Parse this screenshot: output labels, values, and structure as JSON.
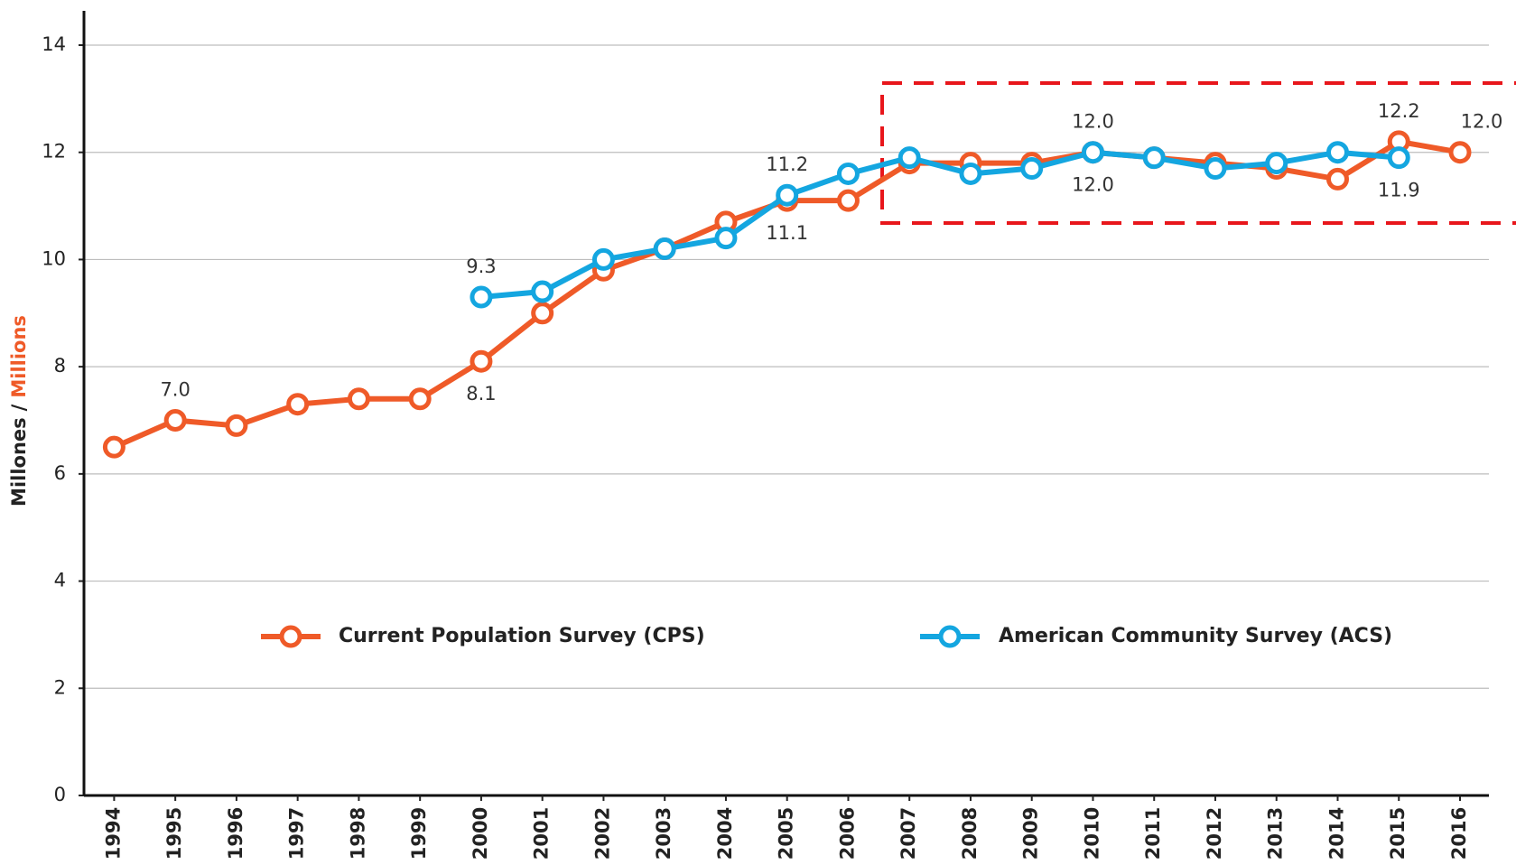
{
  "chart_data": {
    "type": "line",
    "y_label": [
      "Millones",
      "/",
      "Millions"
    ],
    "x": [
      "1994",
      "1995",
      "1996",
      "1997",
      "1998",
      "1999",
      "2000",
      "2001",
      "2002",
      "2003",
      "2004",
      "2005",
      "2006",
      "2007",
      "2008",
      "2009",
      "2010",
      "2011",
      "2012",
      "2013",
      "2014",
      "2015",
      "2016"
    ],
    "series": [
      {
        "name": "Current Population Survey (CPS)",
        "color": "#ef5a28",
        "values": [
          6.5,
          7.0,
          6.9,
          7.3,
          7.4,
          7.4,
          8.1,
          9.0,
          9.8,
          10.2,
          10.7,
          11.1,
          11.1,
          11.8,
          11.8,
          11.8,
          12.0,
          11.9,
          11.8,
          11.7,
          11.5,
          12.2,
          12.0
        ],
        "value_labels": [
          null,
          "7.0",
          null,
          null,
          null,
          null,
          "8.1",
          null,
          null,
          null,
          null,
          "11.1",
          null,
          null,
          null,
          null,
          "12.0",
          null,
          null,
          null,
          null,
          "12.2",
          "12.0"
        ]
      },
      {
        "name": "American Community Survey (ACS)",
        "color": "#14a6e0",
        "values": [
          null,
          null,
          null,
          null,
          null,
          null,
          9.3,
          9.4,
          10.0,
          10.2,
          10.4,
          11.2,
          11.6,
          11.9,
          11.6,
          11.7,
          12.0,
          11.9,
          11.7,
          11.8,
          12.0,
          11.9,
          null
        ],
        "value_labels": [
          null,
          null,
          null,
          null,
          null,
          null,
          "9.3",
          null,
          null,
          null,
          null,
          "11.2",
          null,
          null,
          null,
          null,
          "12.0",
          null,
          null,
          null,
          null,
          "11.9",
          null
        ]
      }
    ],
    "ylim": [
      0,
      14
    ],
    "yticks": [
      0,
      2,
      4,
      6,
      8,
      10,
      12,
      14
    ],
    "grid": true
  }
}
